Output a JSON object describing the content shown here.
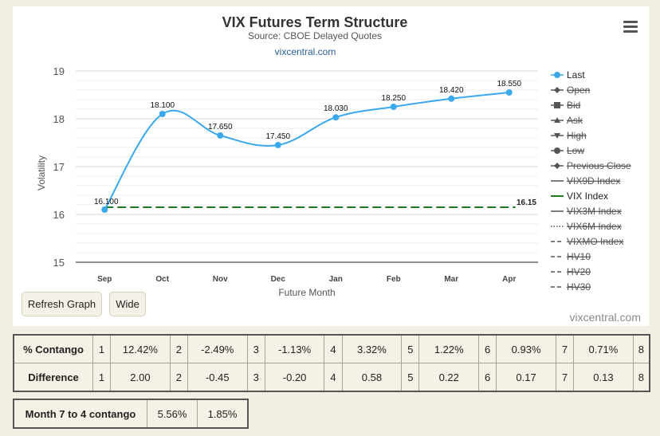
{
  "chart_data": {
    "type": "line",
    "title": "VIX Futures Term Structure",
    "subtitle": "Source: CBOE Delayed Quotes",
    "link": "vixcentral.com",
    "xlabel": "Future Month",
    "ylabel": "Volatility",
    "categories": [
      "Sep",
      "Oct",
      "Nov",
      "Dec",
      "Jan",
      "Feb",
      "Mar",
      "Apr"
    ],
    "ylim": [
      15,
      19
    ],
    "yticks": [
      15,
      16,
      17,
      18,
      19
    ],
    "series": [
      {
        "name": "Last",
        "values": [
          16.1,
          18.1,
          17.65,
          17.45,
          18.03,
          18.25,
          18.42,
          18.55
        ],
        "labels": [
          "16.100",
          "18.100",
          "17.650",
          "17.450",
          "18.030",
          "18.250",
          "18.420",
          "18.550"
        ],
        "color": "#3aa9ec"
      },
      {
        "name": "VIX Index",
        "value": 16.15,
        "label": "16.15",
        "color": "#1f7a1f",
        "style": "dashed"
      }
    ],
    "legend": {
      "position": "right",
      "items": [
        {
          "label": "Last",
          "marker": "circle",
          "enabled": true
        },
        {
          "label": "Open",
          "marker": "diamond",
          "enabled": false
        },
        {
          "label": "Bid",
          "marker": "square",
          "enabled": false
        },
        {
          "label": "Ask",
          "marker": "triangle",
          "enabled": false
        },
        {
          "label": "High",
          "marker": "triangle-down",
          "enabled": false
        },
        {
          "label": "Low",
          "marker": "circle",
          "enabled": false
        },
        {
          "label": "Previous Close",
          "marker": "diamond",
          "enabled": false
        },
        {
          "label": "VIX9D Index",
          "marker": "line",
          "enabled": false
        },
        {
          "label": "VIX Index",
          "marker": "line-green",
          "enabled": true
        },
        {
          "label": "VIX3M Index",
          "marker": "line",
          "enabled": false
        },
        {
          "label": "VIX6M Index",
          "marker": "dotted",
          "enabled": false
        },
        {
          "label": "VIXMO Index",
          "marker": "dashed",
          "enabled": false
        },
        {
          "label": "HV10",
          "marker": "dashdot",
          "enabled": false
        },
        {
          "label": "HV20",
          "marker": "dashdot",
          "enabled": false
        },
        {
          "label": "HV30",
          "marker": "dashdot",
          "enabled": false
        }
      ]
    },
    "credit": "vixcentral.com",
    "grid": true
  },
  "buttons": {
    "refresh": "Refresh Graph",
    "wide": "Wide"
  },
  "tables": {
    "contango": {
      "label": "% Contango",
      "cells": [
        {
          "n": "1",
          "v": "12.42%"
        },
        {
          "n": "2",
          "v": "-2.49%"
        },
        {
          "n": "3",
          "v": "-1.13%"
        },
        {
          "n": "4",
          "v": "3.32%"
        },
        {
          "n": "5",
          "v": "1.22%"
        },
        {
          "n": "6",
          "v": "0.93%"
        },
        {
          "n": "7",
          "v": "0.71%"
        },
        {
          "n": "8",
          "v": ""
        }
      ]
    },
    "difference": {
      "label": "Difference",
      "cells": [
        {
          "n": "1",
          "v": "2.00"
        },
        {
          "n": "2",
          "v": "-0.45"
        },
        {
          "n": "3",
          "v": "-0.20"
        },
        {
          "n": "4",
          "v": "0.58"
        },
        {
          "n": "5",
          "v": "0.22"
        },
        {
          "n": "6",
          "v": "0.17"
        },
        {
          "n": "7",
          "v": "0.13"
        },
        {
          "n": "8",
          "v": ""
        }
      ]
    },
    "month74": {
      "label": "Month 7 to 4 contango",
      "values": [
        "5.56%",
        "1.85%"
      ]
    }
  }
}
